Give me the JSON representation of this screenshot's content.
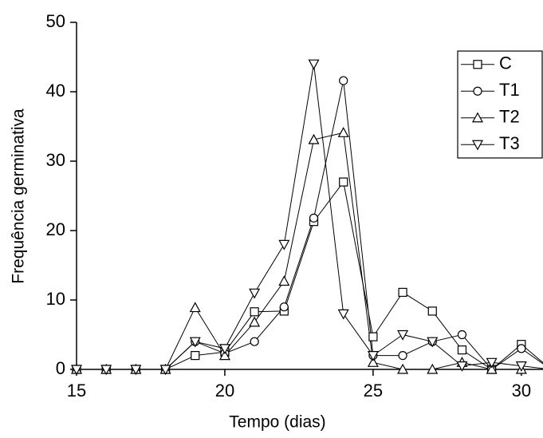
{
  "chart_data": {
    "type": "line",
    "x_label": "Tempo (dias)",
    "y_label": "Frequência germinativa",
    "x": [
      15,
      16,
      17,
      18,
      19,
      20,
      21,
      22,
      23,
      24,
      25,
      26,
      27,
      28,
      29,
      30,
      31
    ],
    "series": [
      {
        "name": "C",
        "color": "#000000",
        "marker": "square",
        "values": [
          0,
          0,
          0,
          0,
          2,
          2.5,
          8.3,
          8.4,
          21.3,
          27,
          4.7,
          11.1,
          8.4,
          2.8,
          0,
          3.6,
          0
        ]
      },
      {
        "name": "T1",
        "color": "#000000",
        "marker": "circle",
        "values": [
          0,
          0,
          0,
          0,
          4,
          2.3,
          4,
          9,
          21.8,
          41.6,
          2,
          2,
          4,
          5,
          0,
          3,
          0
        ]
      },
      {
        "name": "T2",
        "color": "#000000",
        "marker": "triangle-up",
        "values": [
          0,
          0,
          0,
          0,
          8.9,
          2,
          6.8,
          12.7,
          33.1,
          34.1,
          1,
          0,
          0,
          1,
          0,
          0,
          0
        ]
      },
      {
        "name": "T3",
        "color": "#000000",
        "marker": "triangle-down",
        "values": [
          0,
          0,
          0,
          0,
          4,
          3,
          11,
          18,
          44,
          8,
          2,
          5,
          4,
          0.5,
          1,
          0.5,
          0
        ]
      }
    ],
    "xlim": [
      15,
      30.73
    ],
    "xticks": [
      15,
      20,
      25,
      30
    ],
    "ylim": [
      0,
      50
    ],
    "yticks": [
      0,
      10,
      20,
      30,
      40,
      50
    ],
    "legend": "top-right",
    "grid": false
  }
}
